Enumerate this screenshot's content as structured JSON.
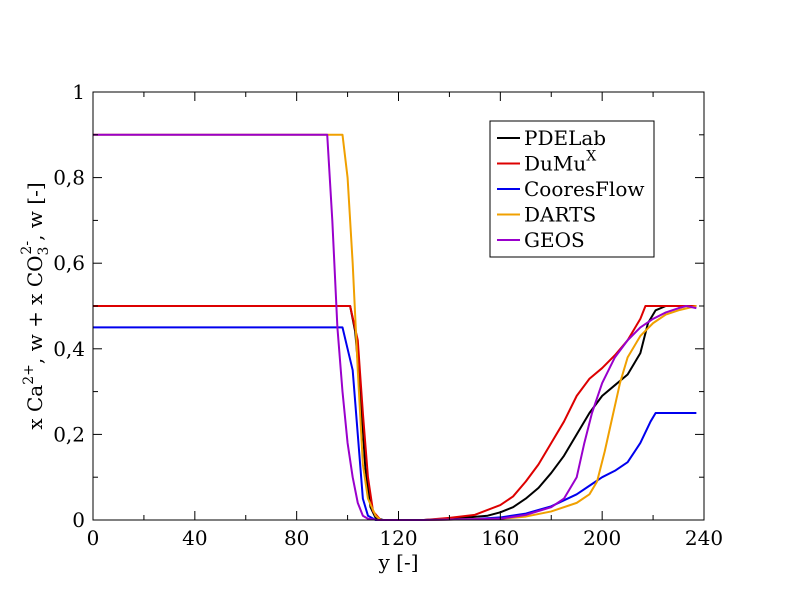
{
  "chart_data": {
    "type": "line",
    "title": "",
    "xlabel": "y [-]",
    "ylabel": {
      "parts": [
        "x Ca",
        "2+",
        ", w + x CO",
        "3",
        "2-",
        ", w [-]"
      ]
    },
    "xlim": [
      0,
      240
    ],
    "ylim": [
      0,
      1
    ],
    "x_ticks": [
      0,
      40,
      80,
      120,
      160,
      200,
      240
    ],
    "x_tick_labels": [
      "0",
      "40",
      "80",
      "120",
      "160",
      "200",
      "240"
    ],
    "y_ticks": [
      0,
      0.2,
      0.4,
      0.6,
      0.8,
      1
    ],
    "y_tick_labels": [
      "0",
      "0,2",
      "0,4",
      "0,6",
      "0,8",
      "1"
    ],
    "grid": false,
    "legend_position": "top-right",
    "series": [
      {
        "name": "PDELab",
        "name_sup": "",
        "color": "#000000",
        "points": [
          [
            0,
            0.5
          ],
          [
            101,
            0.5
          ],
          [
            103,
            0.44
          ],
          [
            105,
            0.3
          ],
          [
            107,
            0.12
          ],
          [
            109,
            0.03
          ],
          [
            111,
            0.005
          ],
          [
            114,
            0
          ],
          [
            130,
            0
          ],
          [
            145,
            0.005
          ],
          [
            155,
            0.01
          ],
          [
            160,
            0.018
          ],
          [
            165,
            0.03
          ],
          [
            170,
            0.05
          ],
          [
            175,
            0.075
          ],
          [
            180,
            0.11
          ],
          [
            185,
            0.15
          ],
          [
            190,
            0.2
          ],
          [
            195,
            0.25
          ],
          [
            200,
            0.29
          ],
          [
            205,
            0.315
          ],
          [
            210,
            0.34
          ],
          [
            215,
            0.39
          ],
          [
            218,
            0.46
          ],
          [
            221,
            0.49
          ],
          [
            225,
            0.5
          ],
          [
            237,
            0.5
          ]
        ]
      },
      {
        "name": "DuMu",
        "name_sup": "X",
        "color": "#dd0000",
        "points": [
          [
            0,
            0.5
          ],
          [
            101,
            0.5
          ],
          [
            104,
            0.42
          ],
          [
            106,
            0.25
          ],
          [
            108,
            0.1
          ],
          [
            110,
            0.02
          ],
          [
            113,
            0
          ],
          [
            130,
            0
          ],
          [
            140,
            0.005
          ],
          [
            150,
            0.012
          ],
          [
            160,
            0.035
          ],
          [
            165,
            0.055
          ],
          [
            170,
            0.09
          ],
          [
            175,
            0.13
          ],
          [
            180,
            0.18
          ],
          [
            185,
            0.23
          ],
          [
            190,
            0.29
          ],
          [
            195,
            0.33
          ],
          [
            200,
            0.355
          ],
          [
            205,
            0.385
          ],
          [
            210,
            0.42
          ],
          [
            215,
            0.47
          ],
          [
            217,
            0.5
          ],
          [
            237,
            0.5
          ]
        ]
      },
      {
        "name": "CooresFlow",
        "name_sup": "",
        "color": "#0000ee",
        "points": [
          [
            0,
            0.45
          ],
          [
            98,
            0.45
          ],
          [
            100,
            0.4
          ],
          [
            102,
            0.35
          ],
          [
            104,
            0.2
          ],
          [
            106,
            0.05
          ],
          [
            108,
            0.01
          ],
          [
            111,
            0
          ],
          [
            130,
            0
          ],
          [
            150,
            0.002
          ],
          [
            160,
            0.006
          ],
          [
            170,
            0.015
          ],
          [
            180,
            0.032
          ],
          [
            190,
            0.06
          ],
          [
            195,
            0.08
          ],
          [
            200,
            0.1
          ],
          [
            205,
            0.115
          ],
          [
            210,
            0.135
          ],
          [
            215,
            0.18
          ],
          [
            219,
            0.23
          ],
          [
            221,
            0.25
          ],
          [
            237,
            0.25
          ]
        ]
      },
      {
        "name": "DARTS",
        "name_sup": "",
        "color": "#f0a000",
        "points": [
          [
            0,
            0.9
          ],
          [
            97,
            0.9
          ],
          [
            98,
            0.9
          ],
          [
            100,
            0.8
          ],
          [
            102,
            0.6
          ],
          [
            104,
            0.35
          ],
          [
            106,
            0.13
          ],
          [
            108,
            0.05
          ],
          [
            111,
            0.01
          ],
          [
            113,
            0
          ],
          [
            130,
            0
          ],
          [
            160,
            0.003
          ],
          [
            170,
            0.008
          ],
          [
            180,
            0.02
          ],
          [
            190,
            0.04
          ],
          [
            195,
            0.06
          ],
          [
            198,
            0.09
          ],
          [
            201,
            0.16
          ],
          [
            204,
            0.24
          ],
          [
            207,
            0.32
          ],
          [
            210,
            0.38
          ],
          [
            215,
            0.43
          ],
          [
            220,
            0.46
          ],
          [
            225,
            0.48
          ],
          [
            230,
            0.49
          ],
          [
            237,
            0.5
          ]
        ]
      },
      {
        "name": "GEOS",
        "name_sup": "",
        "color": "#9900cc",
        "points": [
          [
            0,
            0.9
          ],
          [
            92,
            0.9
          ],
          [
            94,
            0.7
          ],
          [
            96,
            0.45
          ],
          [
            98,
            0.3
          ],
          [
            100,
            0.18
          ],
          [
            102,
            0.1
          ],
          [
            104,
            0.04
          ],
          [
            106,
            0.01
          ],
          [
            108,
            0.003
          ],
          [
            112,
            0
          ],
          [
            130,
            0
          ],
          [
            160,
            0.003
          ],
          [
            170,
            0.012
          ],
          [
            180,
            0.03
          ],
          [
            185,
            0.05
          ],
          [
            190,
            0.1
          ],
          [
            193,
            0.18
          ],
          [
            196,
            0.25
          ],
          [
            200,
            0.32
          ],
          [
            205,
            0.38
          ],
          [
            210,
            0.42
          ],
          [
            215,
            0.45
          ],
          [
            220,
            0.47
          ],
          [
            225,
            0.485
          ],
          [
            230,
            0.495
          ],
          [
            233,
            0.5
          ],
          [
            237,
            0.495
          ]
        ]
      }
    ]
  }
}
